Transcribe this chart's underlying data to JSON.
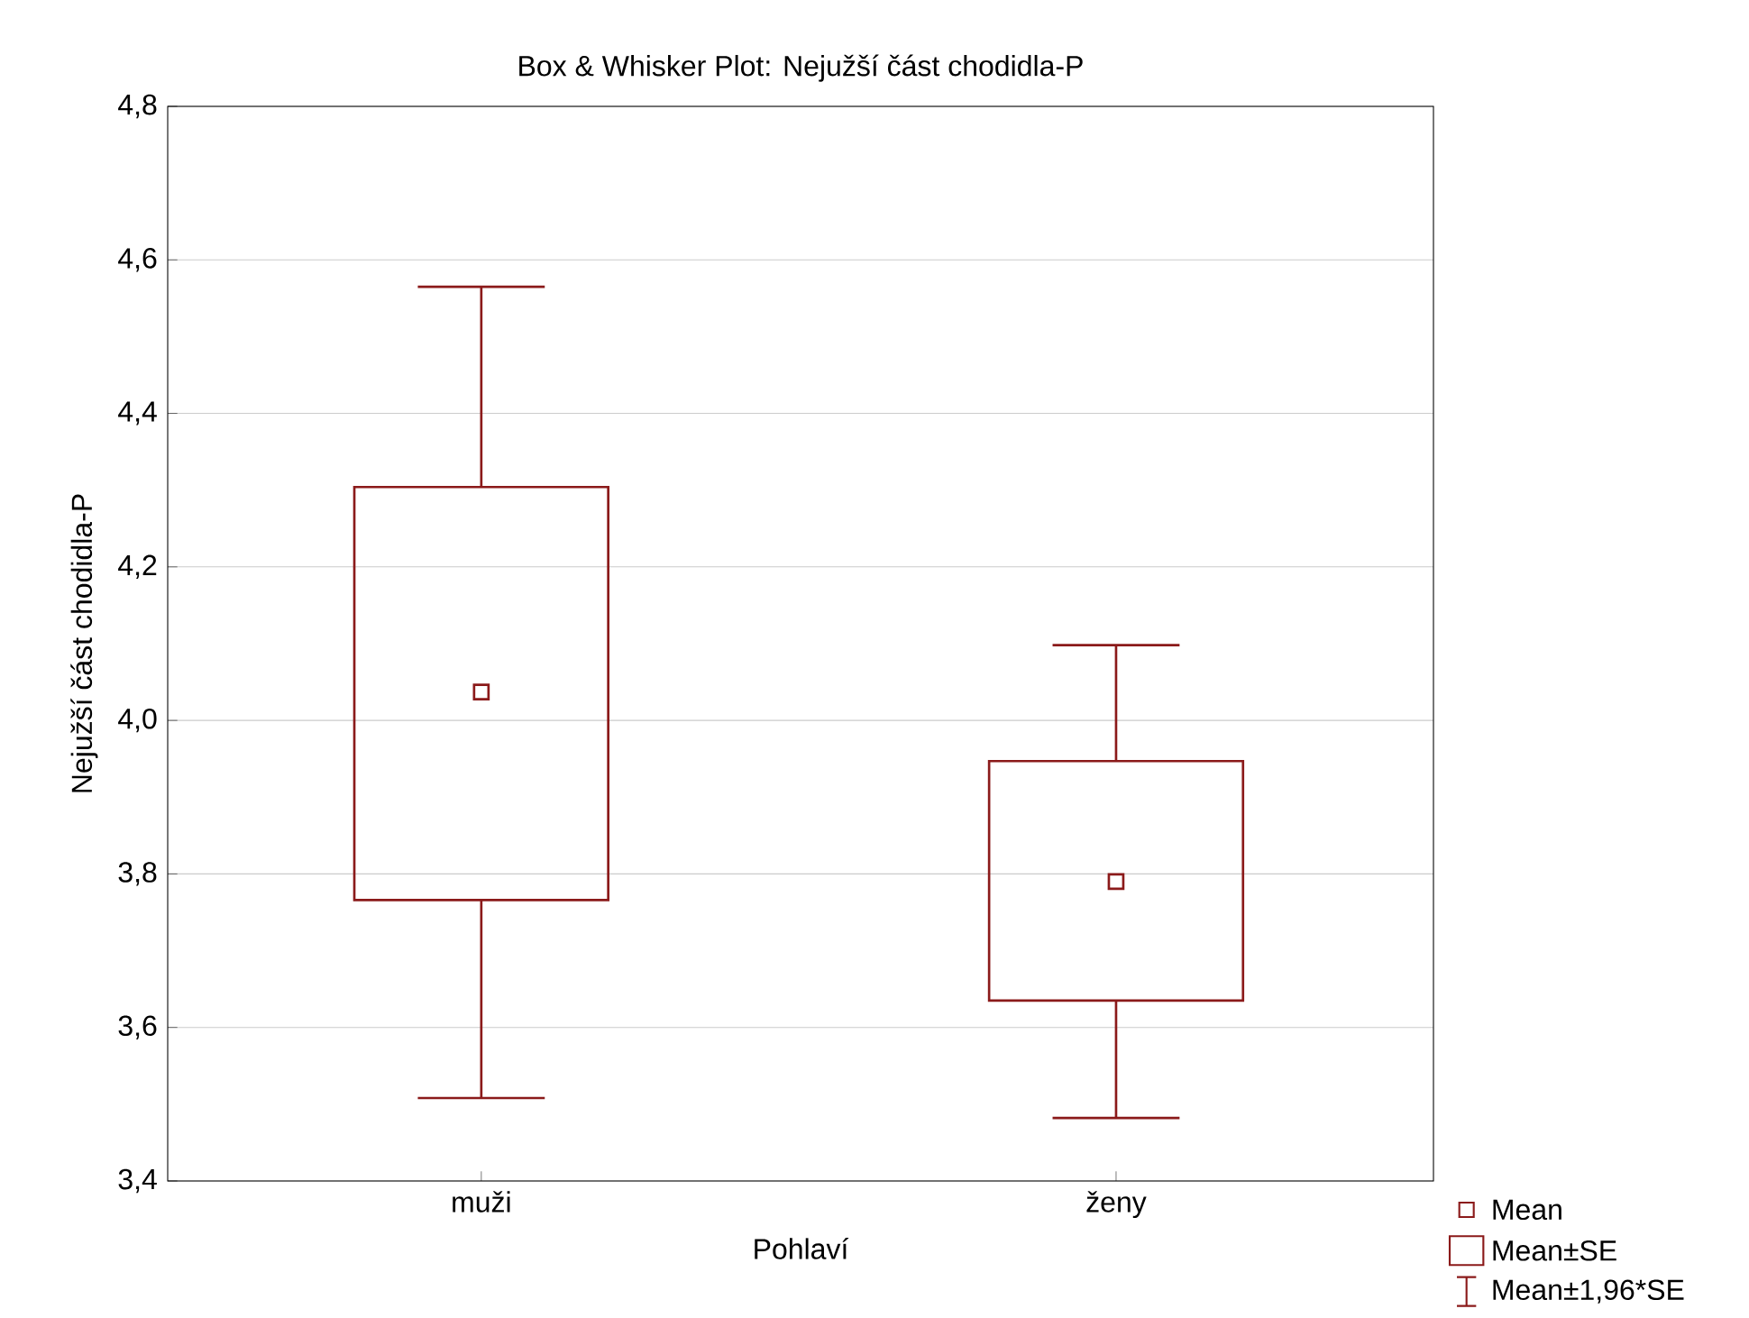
{
  "chart_data": {
    "type": "box",
    "title": "Box & Whisker Plot: Nejužší část chodidla-P",
    "xlabel": "Pohlaví",
    "ylabel": "Nejužší část chodidla-P",
    "categories": [
      "muži",
      "ženy"
    ],
    "boxes": [
      {
        "low": 3.508,
        "q1": 3.766,
        "q3": 4.304,
        "high": 4.565,
        "mean": 4.037
      },
      {
        "low": 3.482,
        "q1": 3.635,
        "q3": 3.947,
        "high": 4.098,
        "mean": 3.79
      }
    ],
    "color": "#8b1a1a",
    "ylim": [
      3.4,
      4.8
    ],
    "yticks": [
      {
        "value": 3.4,
        "label": "3,4"
      },
      {
        "value": 3.6,
        "label": "3,6"
      },
      {
        "value": 3.8,
        "label": "3,8"
      },
      {
        "value": 4.0,
        "label": "4,0"
      },
      {
        "value": 4.2,
        "label": "4,2"
      },
      {
        "value": 4.4,
        "label": "4,4"
      },
      {
        "value": 4.6,
        "label": "4,6"
      },
      {
        "value": 4.8,
        "label": "4,8"
      }
    ],
    "grid": "y",
    "marker": "square",
    "annotations": [
      "Mean",
      "Mean±SE",
      "Mean±1,96*SE"
    ]
  }
}
